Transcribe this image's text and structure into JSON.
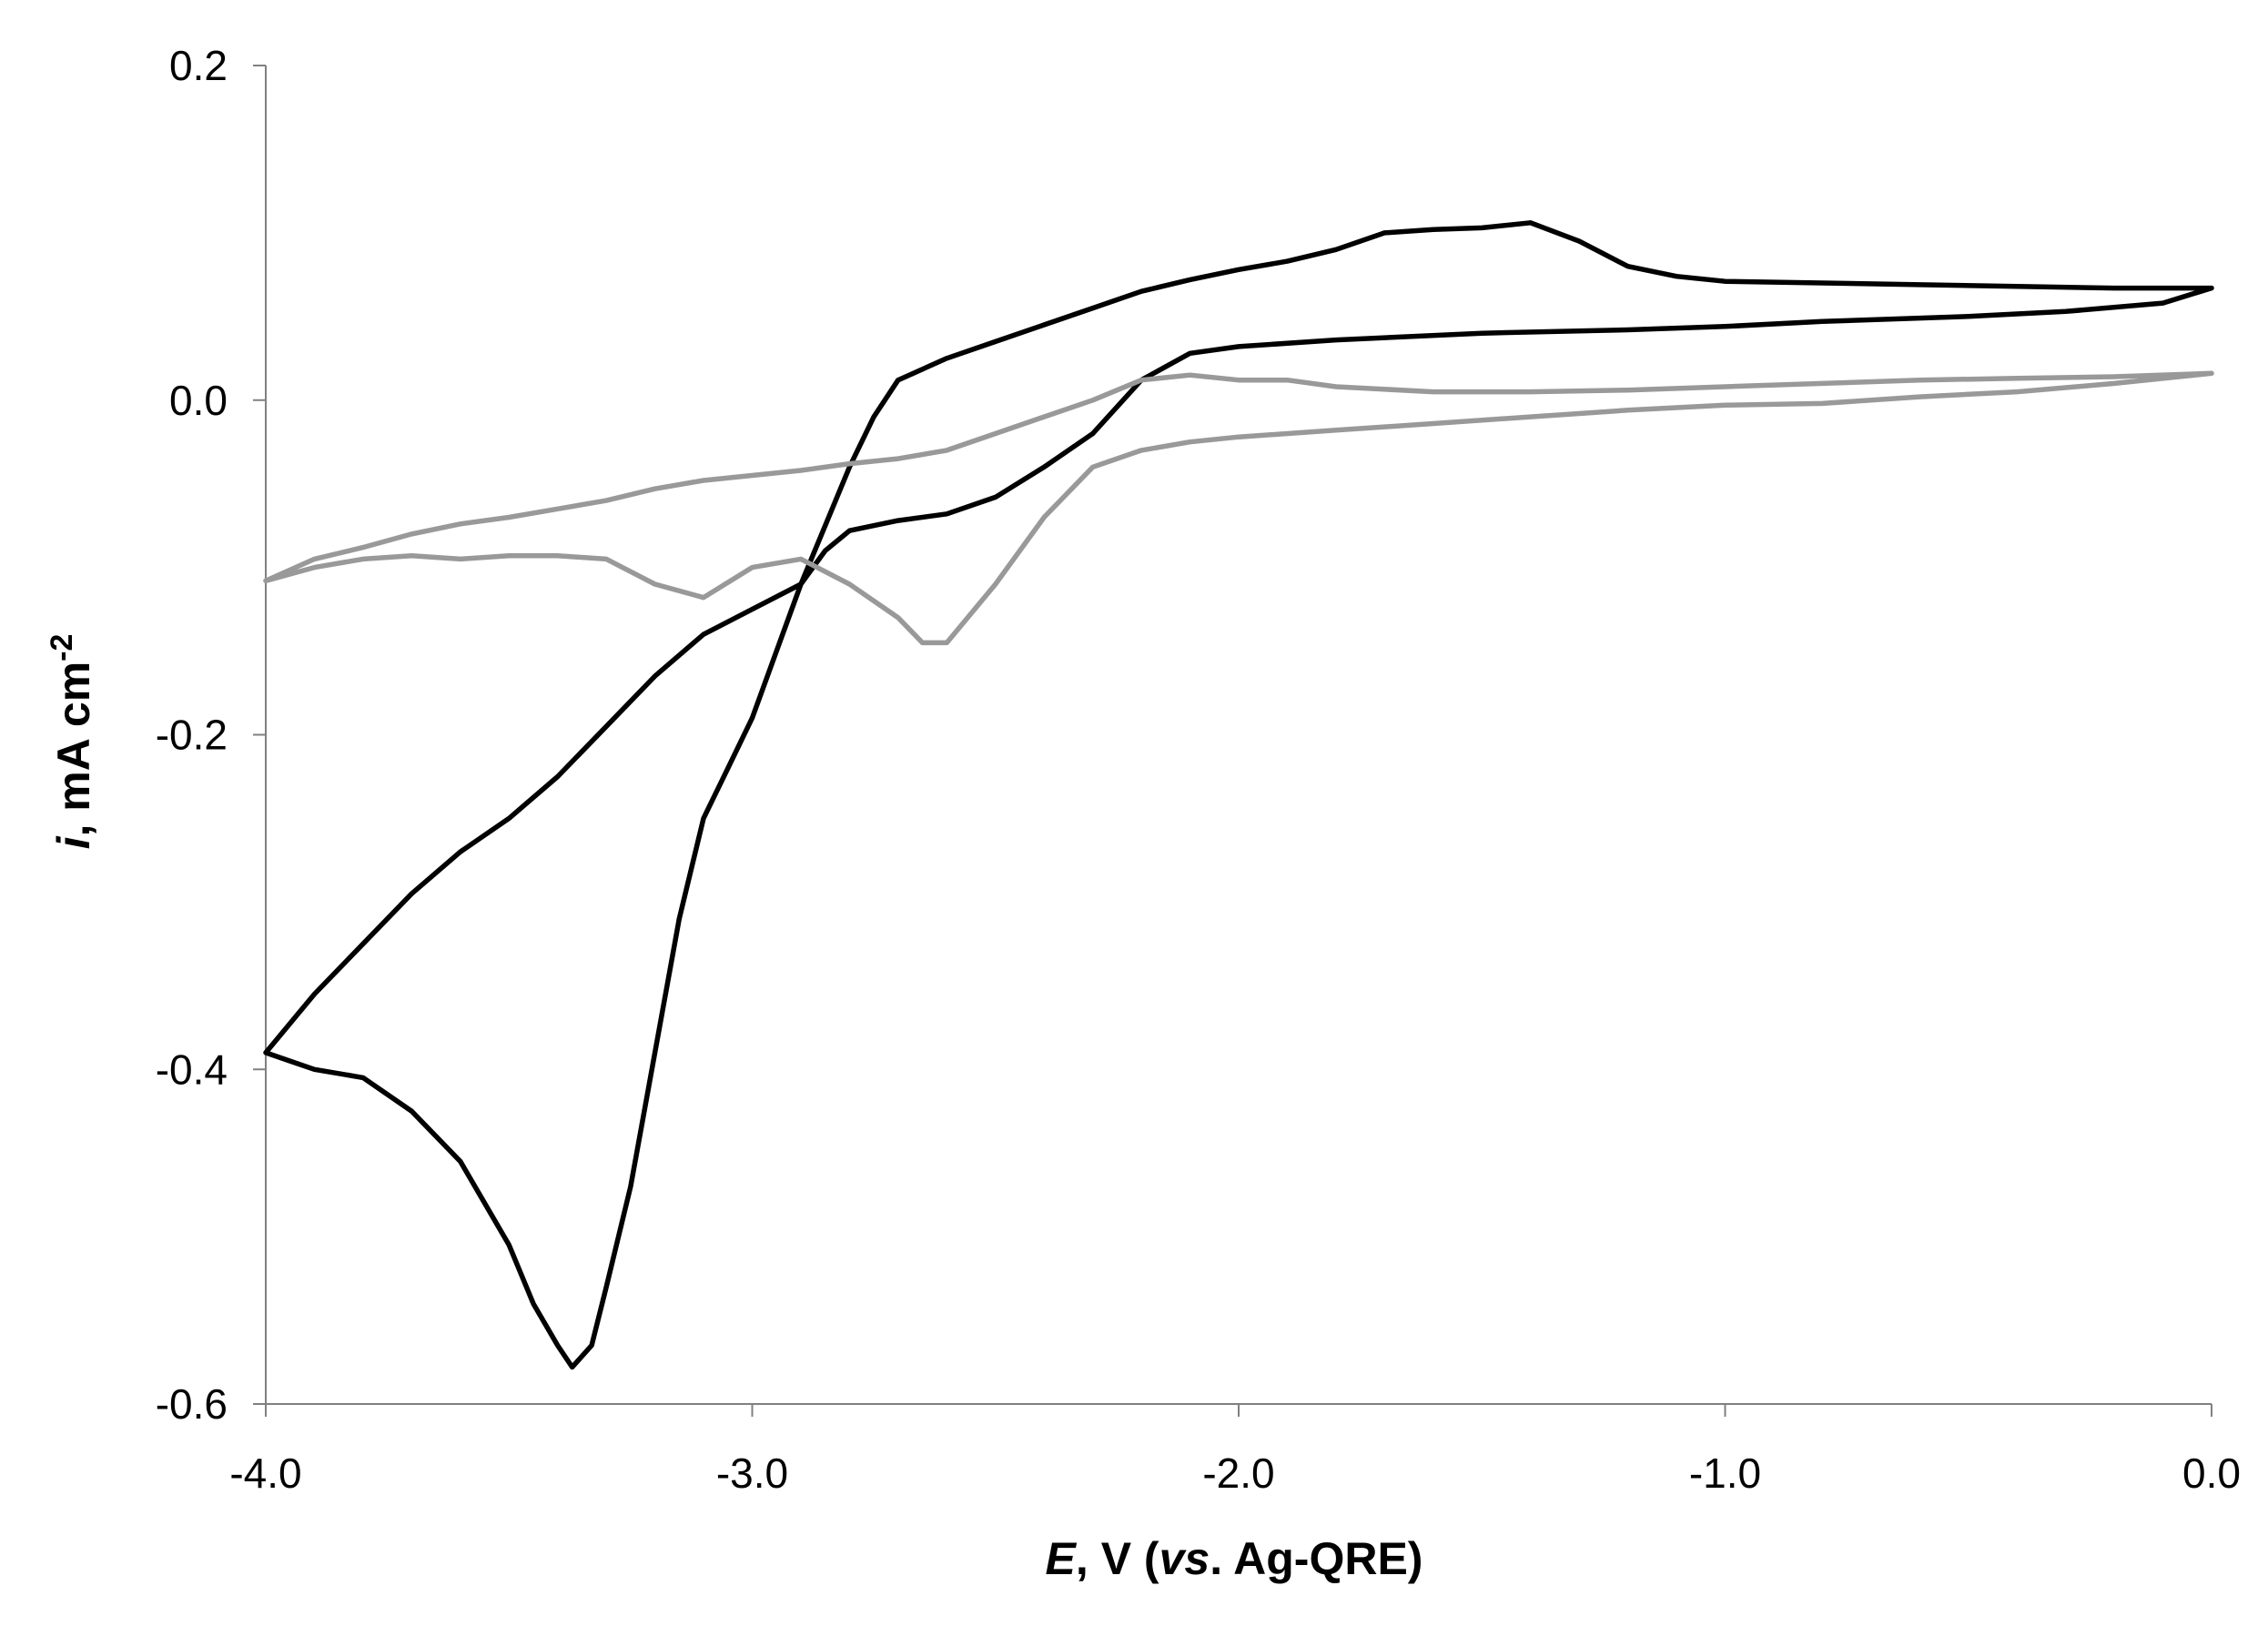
{
  "chart_data": {
    "type": "line",
    "title": "",
    "xlabel": {
      "italic": "E",
      "plain1": ", V (",
      "italic2": "vs",
      "plain2": ". Ag-QRE)"
    },
    "ylabel": {
      "italic": "i",
      "plain": ", mA cm",
      "sup": "-2"
    },
    "xlim": [
      -4.0,
      0.0
    ],
    "ylim": [
      -0.6,
      0.2
    ],
    "x_ticks": [
      -4.0,
      -3.0,
      -2.0,
      -1.0,
      0.0
    ],
    "x_tick_labels": [
      "-4.0",
      "-3.0",
      "-2.0",
      "-1.0",
      "0.0"
    ],
    "y_ticks": [
      -0.6,
      -0.4,
      -0.2,
      0.0,
      0.2
    ],
    "y_tick_labels": [
      "-0.6",
      "-0.4",
      "-0.2",
      "0.0",
      "0.2"
    ],
    "grid": false,
    "legend": "none",
    "series": [
      {
        "color": "#000000",
        "points": [
          [
            0.0,
            0.067
          ],
          [
            -0.1,
            0.058
          ],
          [
            -0.3,
            0.053
          ],
          [
            -0.5,
            0.05
          ],
          [
            -0.8,
            0.047
          ],
          [
            -1.0,
            0.044
          ],
          [
            -1.2,
            0.042
          ],
          [
            -1.5,
            0.04
          ],
          [
            -1.8,
            0.036
          ],
          [
            -2.0,
            0.032
          ],
          [
            -2.1,
            0.028
          ],
          [
            -2.2,
            0.012
          ],
          [
            -2.3,
            -0.02
          ],
          [
            -2.4,
            -0.04
          ],
          [
            -2.5,
            -0.058
          ],
          [
            -2.6,
            -0.068
          ],
          [
            -2.7,
            -0.072
          ],
          [
            -2.8,
            -0.078
          ],
          [
            -2.85,
            -0.09
          ],
          [
            -2.9,
            -0.11
          ],
          [
            -3.0,
            -0.125
          ],
          [
            -3.1,
            -0.14
          ],
          [
            -3.2,
            -0.165
          ],
          [
            -3.3,
            -0.195
          ],
          [
            -3.4,
            -0.225
          ],
          [
            -3.5,
            -0.25
          ],
          [
            -3.6,
            -0.27
          ],
          [
            -3.7,
            -0.295
          ],
          [
            -3.8,
            -0.325
          ],
          [
            -3.9,
            -0.355
          ],
          [
            -4.0,
            -0.39
          ],
          [
            -3.95,
            -0.395
          ],
          [
            -3.9,
            -0.4
          ],
          [
            -3.8,
            -0.405
          ],
          [
            -3.7,
            -0.425
          ],
          [
            -3.6,
            -0.455
          ],
          [
            -3.5,
            -0.505
          ],
          [
            -3.45,
            -0.54
          ],
          [
            -3.4,
            -0.565
          ],
          [
            -3.37,
            -0.578
          ],
          [
            -3.33,
            -0.565
          ],
          [
            -3.3,
            -0.53
          ],
          [
            -3.25,
            -0.47
          ],
          [
            -3.2,
            -0.39
          ],
          [
            -3.15,
            -0.31
          ],
          [
            -3.1,
            -0.25
          ],
          [
            -3.05,
            -0.22
          ],
          [
            -3.0,
            -0.19
          ],
          [
            -2.95,
            -0.15
          ],
          [
            -2.9,
            -0.11
          ],
          [
            -2.85,
            -0.075
          ],
          [
            -2.8,
            -0.04
          ],
          [
            -2.75,
            -0.01
          ],
          [
            -2.7,
            0.012
          ],
          [
            -2.6,
            0.025
          ],
          [
            -2.5,
            0.035
          ],
          [
            -2.4,
            0.045
          ],
          [
            -2.3,
            0.055
          ],
          [
            -2.2,
            0.065
          ],
          [
            -2.1,
            0.072
          ],
          [
            -2.0,
            0.078
          ],
          [
            -1.9,
            0.083
          ],
          [
            -1.8,
            0.09
          ],
          [
            -1.7,
            0.1
          ],
          [
            -1.6,
            0.102
          ],
          [
            -1.5,
            0.103
          ],
          [
            -1.4,
            0.106
          ],
          [
            -1.3,
            0.095
          ],
          [
            -1.2,
            0.08
          ],
          [
            -1.1,
            0.074
          ],
          [
            -1.0,
            0.071
          ],
          [
            -0.8,
            0.07
          ],
          [
            -0.6,
            0.069
          ],
          [
            -0.4,
            0.068
          ],
          [
            -0.2,
            0.067
          ],
          [
            0.0,
            0.067
          ]
        ]
      },
      {
        "color": "#999999",
        "points": [
          [
            0.0,
            0.016
          ],
          [
            -0.2,
            0.01
          ],
          [
            -0.4,
            0.005
          ],
          [
            -0.6,
            0.002
          ],
          [
            -0.8,
            -0.002
          ],
          [
            -1.0,
            -0.003
          ],
          [
            -1.2,
            -0.006
          ],
          [
            -1.4,
            -0.01
          ],
          [
            -1.6,
            -0.014
          ],
          [
            -1.8,
            -0.018
          ],
          [
            -2.0,
            -0.022
          ],
          [
            -2.1,
            -0.025
          ],
          [
            -2.2,
            -0.03
          ],
          [
            -2.3,
            -0.04
          ],
          [
            -2.4,
            -0.07
          ],
          [
            -2.5,
            -0.11
          ],
          [
            -2.6,
            -0.145
          ],
          [
            -2.65,
            -0.145
          ],
          [
            -2.7,
            -0.13
          ],
          [
            -2.8,
            -0.11
          ],
          [
            -2.9,
            -0.095
          ],
          [
            -3.0,
            -0.1
          ],
          [
            -3.1,
            -0.118
          ],
          [
            -3.2,
            -0.11
          ],
          [
            -3.3,
            -0.095
          ],
          [
            -3.4,
            -0.093
          ],
          [
            -3.5,
            -0.093
          ],
          [
            -3.6,
            -0.095
          ],
          [
            -3.7,
            -0.093
          ],
          [
            -3.8,
            -0.095
          ],
          [
            -3.9,
            -0.1
          ],
          [
            -4.0,
            -0.108
          ],
          [
            -3.9,
            -0.095
          ],
          [
            -3.8,
            -0.088
          ],
          [
            -3.7,
            -0.08
          ],
          [
            -3.6,
            -0.074
          ],
          [
            -3.5,
            -0.07
          ],
          [
            -3.4,
            -0.065
          ],
          [
            -3.3,
            -0.06
          ],
          [
            -3.2,
            -0.053
          ],
          [
            -3.1,
            -0.048
          ],
          [
            -3.0,
            -0.045
          ],
          [
            -2.9,
            -0.042
          ],
          [
            -2.8,
            -0.038
          ],
          [
            -2.7,
            -0.035
          ],
          [
            -2.6,
            -0.03
          ],
          [
            -2.5,
            -0.02
          ],
          [
            -2.4,
            -0.01
          ],
          [
            -2.3,
            0.0
          ],
          [
            -2.2,
            0.012
          ],
          [
            -2.1,
            0.015
          ],
          [
            -2.0,
            0.012
          ],
          [
            -1.9,
            0.012
          ],
          [
            -1.8,
            0.008
          ],
          [
            -1.6,
            0.005
          ],
          [
            -1.4,
            0.005
          ],
          [
            -1.2,
            0.006
          ],
          [
            -1.0,
            0.008
          ],
          [
            -0.8,
            0.01
          ],
          [
            -0.6,
            0.012
          ],
          [
            -0.4,
            0.013
          ],
          [
            -0.2,
            0.014
          ],
          [
            0.0,
            0.016
          ]
        ]
      }
    ]
  }
}
